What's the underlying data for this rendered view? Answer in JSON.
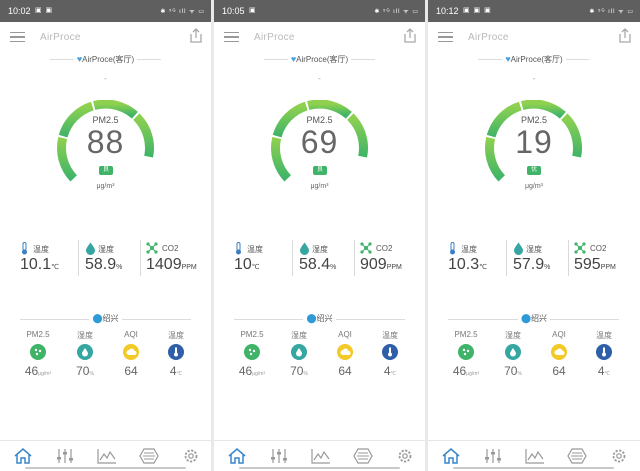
{
  "colors": {
    "status_bar": "#5f5f5f",
    "accent_green": "#3fb468",
    "accent_blue": "#2f9bd6",
    "teal": "#35a6a0",
    "yellow": "#f2c927",
    "navy": "#2f5fa8"
  },
  "screens": [
    {
      "status": {
        "time": "10:02",
        "icons_left": "▣ ▣",
        "icons_right": "✱ ⁵ᴳ ıll ᯤ ▭"
      },
      "app": {
        "title": "AirProce"
      },
      "device_label": "AirProce(客厅)",
      "dash": "-",
      "gauge": {
        "label": "PM2.5",
        "value": "88",
        "badge": "良",
        "unit": "μg/m³",
        "level": 0.88
      },
      "metrics": [
        {
          "label": "温度",
          "value": "10.1",
          "unit": "℃",
          "icon": "thermometer-icon"
        },
        {
          "label": "湿度",
          "value": "58.9",
          "unit": "%",
          "icon": "droplet-icon"
        },
        {
          "label": "CO2",
          "value": "1409",
          "unit": "PPM",
          "icon": "molecule-icon"
        }
      ],
      "location": "绍兴",
      "outdoor": [
        {
          "label": "PM2.5",
          "value": "46",
          "unit": "μg/m³"
        },
        {
          "label": "湿度",
          "value": "70",
          "unit": "%"
        },
        {
          "label": "AQI",
          "value": "64",
          "unit": ""
        },
        {
          "label": "温度",
          "value": "4",
          "unit": "℃"
        }
      ]
    },
    {
      "status": {
        "time": "10:05",
        "icons_left": "▣",
        "icons_right": "✱ ⁵ᴳ ıll ᯤ ▭"
      },
      "app": {
        "title": "AirProce"
      },
      "device_label": "AirProce(客厅)",
      "dash": "-",
      "gauge": {
        "label": "PM2.5",
        "value": "69",
        "badge": "良",
        "unit": "μg/m³",
        "level": 0.88
      },
      "metrics": [
        {
          "label": "温度",
          "value": "10",
          "unit": "℃",
          "icon": "thermometer-icon"
        },
        {
          "label": "湿度",
          "value": "58.4",
          "unit": "%",
          "icon": "droplet-icon"
        },
        {
          "label": "CO2",
          "value": "909",
          "unit": "PPM",
          "icon": "molecule-icon"
        }
      ],
      "location": "绍兴",
      "outdoor": [
        {
          "label": "PM2.5",
          "value": "46",
          "unit": "μg/m³"
        },
        {
          "label": "湿度",
          "value": "70",
          "unit": "%"
        },
        {
          "label": "AQI",
          "value": "64",
          "unit": ""
        },
        {
          "label": "温度",
          "value": "4",
          "unit": "℃"
        }
      ]
    },
    {
      "status": {
        "time": "10:12",
        "icons_left": "▣ ▣ ▣",
        "icons_right": "✱ ⁵ᴳ ıll ᯤ ▭"
      },
      "app": {
        "title": "AirProce"
      },
      "device_label": "AirProce(客厅)",
      "dash": "-",
      "gauge": {
        "label": "PM2.5",
        "value": "19",
        "badge": "优",
        "unit": "μg/m³",
        "level": 0.88
      },
      "metrics": [
        {
          "label": "温度",
          "value": "10.3",
          "unit": "℃",
          "icon": "thermometer-icon"
        },
        {
          "label": "湿度",
          "value": "57.9",
          "unit": "%",
          "icon": "droplet-icon"
        },
        {
          "label": "CO2",
          "value": "595",
          "unit": "PPM",
          "icon": "molecule-icon"
        }
      ],
      "location": "绍兴",
      "outdoor": [
        {
          "label": "PM2.5",
          "value": "46",
          "unit": "μg/m³"
        },
        {
          "label": "湿度",
          "value": "70",
          "unit": "%"
        },
        {
          "label": "AQI",
          "value": "64",
          "unit": ""
        },
        {
          "label": "温度",
          "value": "4",
          "unit": "℃"
        }
      ]
    }
  ],
  "tabs": [
    {
      "name": "home-icon"
    },
    {
      "name": "sliders-icon"
    },
    {
      "name": "chart-line-icon"
    },
    {
      "name": "filter-icon"
    },
    {
      "name": "settings-gear-icon"
    }
  ]
}
